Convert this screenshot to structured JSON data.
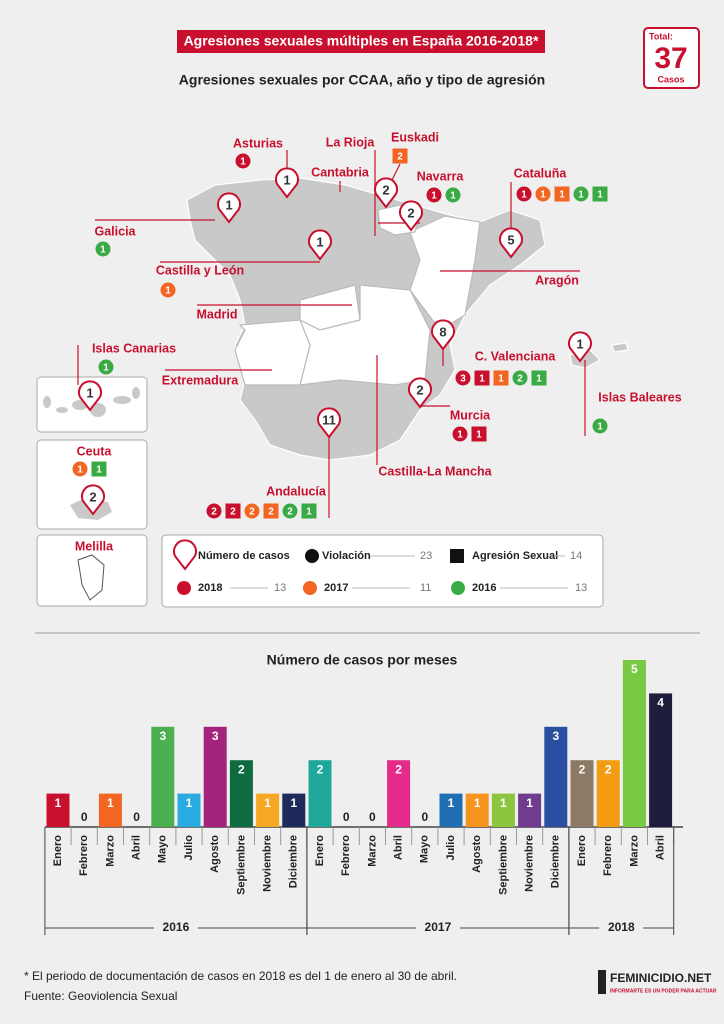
{
  "header": {
    "title": "Agresiones sexuales múltiples en España 2016-2018*"
  },
  "total": {
    "label": "Total:",
    "value": 37,
    "unit": "Casos"
  },
  "map": {
    "title": "Agresiones sexuales por CCAA, año y tipo de agresión",
    "regions": [
      {
        "name": "Asturias",
        "cases": 1,
        "badges": [
          {
            "value": 1,
            "color": "#c8102e",
            "shape": "circle"
          }
        ]
      },
      {
        "name": "Cantabria"
      },
      {
        "name": "La Rioja"
      },
      {
        "name": "Euskadi",
        "cases": 2,
        "badges": [
          {
            "value": 2,
            "color": "#f26522",
            "shape": "square"
          }
        ]
      },
      {
        "name": "Navarra",
        "cases": 2,
        "badges": [
          {
            "value": 1,
            "color": "#c8102e",
            "shape": "circle"
          },
          {
            "value": 1,
            "color": "#3aaa45",
            "shape": "circle"
          }
        ]
      },
      {
        "name": "Galicia",
        "cases": 1,
        "badges": [
          {
            "value": 1,
            "color": "#3aaa45",
            "shape": "circle"
          }
        ]
      },
      {
        "name": "Castilla y León",
        "cases": 1,
        "badges": [
          {
            "value": 1,
            "color": "#f26522",
            "shape": "circle"
          }
        ]
      },
      {
        "name": "Madrid"
      },
      {
        "name": "Cataluña",
        "cases": 5,
        "badges": [
          {
            "value": 1,
            "color": "#c8102e",
            "shape": "circle"
          },
          {
            "value": 1,
            "color": "#f26522",
            "shape": "circle"
          },
          {
            "value": 1,
            "color": "#f26522",
            "shape": "square"
          },
          {
            "value": 1,
            "color": "#3aaa45",
            "shape": "circle"
          },
          {
            "value": 1,
            "color": "#3aaa45",
            "shape": "square"
          }
        ]
      },
      {
        "name": "Aragón"
      },
      {
        "name": "Islas Canarias",
        "cases": 1,
        "badges": [
          {
            "value": 1,
            "color": "#3aaa45",
            "shape": "circle"
          }
        ]
      },
      {
        "name": "C. Valenciana",
        "cases": 8,
        "badges": [
          {
            "value": 3,
            "color": "#c8102e",
            "shape": "circle"
          },
          {
            "value": 1,
            "color": "#c8102e",
            "shape": "square"
          },
          {
            "value": 1,
            "color": "#f26522",
            "shape": "square"
          },
          {
            "value": 2,
            "color": "#3aaa45",
            "shape": "circle"
          },
          {
            "value": 1,
            "color": "#3aaa45",
            "shape": "square"
          }
        ]
      },
      {
        "name": "Islas Baleares",
        "cases": 1,
        "badges": [
          {
            "value": 1,
            "color": "#3aaa45",
            "shape": "circle"
          }
        ]
      },
      {
        "name": "Murcia",
        "cases": 2,
        "badges": [
          {
            "value": 1,
            "color": "#c8102e",
            "shape": "circle"
          },
          {
            "value": 1,
            "color": "#c8102e",
            "shape": "square"
          }
        ]
      },
      {
        "name": "Extremadura"
      },
      {
        "name": "Castilla-La Mancha"
      },
      {
        "name": "Andalucía",
        "cases": 11,
        "badges": [
          {
            "value": 2,
            "color": "#c8102e",
            "shape": "circle"
          },
          {
            "value": 2,
            "color": "#c8102e",
            "shape": "square"
          },
          {
            "value": 2,
            "color": "#f26522",
            "shape": "circle"
          },
          {
            "value": 2,
            "color": "#f26522",
            "shape": "square"
          },
          {
            "value": 2,
            "color": "#3aaa45",
            "shape": "circle"
          },
          {
            "value": 1,
            "color": "#3aaa45",
            "shape": "square"
          }
        ]
      },
      {
        "name": "Ceuta",
        "cases": 2,
        "badges": [
          {
            "value": 1,
            "color": "#f26522",
            "shape": "circle"
          },
          {
            "value": 1,
            "color": "#3aaa45",
            "shape": "square"
          }
        ]
      },
      {
        "name": "Melilla"
      }
    ]
  },
  "legend": {
    "pin": "Número de casos",
    "types": [
      {
        "name": "Violación",
        "total": 23,
        "shape": "circle"
      },
      {
        "name": "Agresión Sexual",
        "total": 14,
        "shape": "square"
      }
    ],
    "years": [
      {
        "name": "2018",
        "total": 13,
        "color": "#c8102e"
      },
      {
        "name": "2017",
        "total": 11,
        "color": "#f26522"
      },
      {
        "name": "2016",
        "total": 13,
        "color": "#3aaa45"
      }
    ]
  },
  "chart_data": {
    "type": "bar",
    "title": "Número de casos por meses",
    "groups": [
      {
        "name": "2016",
        "categories": [
          "Enero",
          "Febrero",
          "Marzo",
          "Abril",
          "Mayo",
          "Julio",
          "Agosto",
          "Septiembre",
          "Noviembre",
          "Diciembre"
        ],
        "values": [
          1,
          0,
          1,
          0,
          3,
          1,
          3,
          2,
          1,
          1
        ],
        "colors": [
          "#c8102e",
          null,
          "#f26522",
          null,
          "#4caf50",
          "#29abe2",
          "#a3237d",
          "#0d6b3f",
          "#f7a823",
          "#1e2a5a"
        ]
      },
      {
        "name": "2017",
        "categories": [
          "Enero",
          "Febrero",
          "Marzo",
          "Abril",
          "Mayo",
          "Julio",
          "Agosto",
          "Septiembre",
          "Noviembre",
          "Diciembre"
        ],
        "values": [
          2,
          0,
          0,
          2,
          0,
          1,
          1,
          1,
          1,
          3
        ],
        "colors": [
          "#1fa79b",
          null,
          null,
          "#e52b8a",
          null,
          "#1f6fb2",
          "#f7941d",
          "#8cc63f",
          "#6f3c8f",
          "#2a4fa0"
        ]
      },
      {
        "name": "2018",
        "categories": [
          "Enero",
          "Febrero",
          "Marzo",
          "Abril"
        ],
        "values": [
          2,
          2,
          5,
          4
        ],
        "colors": [
          "#8c7a65",
          "#f39c12",
          "#7ac943",
          "#1e1e3c"
        ]
      }
    ]
  },
  "footer": {
    "note": "* El periodo de documentación de casos en 2018 es del 1 de enero al 30 de abril.",
    "source": "Fuente: Geoviolencia Sexual",
    "logo": "FEMINICIDIO.NET",
    "tagline": "INFORMARTE ES UN PODER PARA ACTUAR"
  }
}
